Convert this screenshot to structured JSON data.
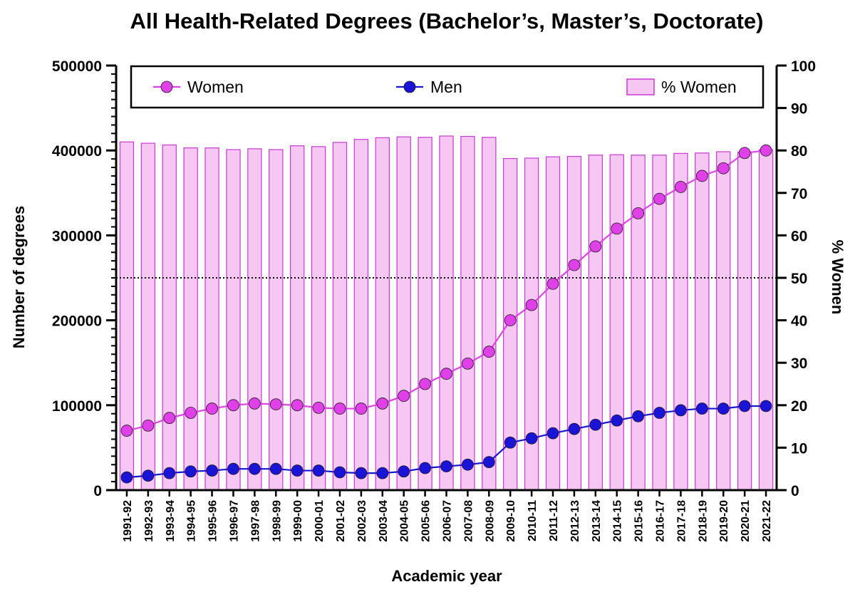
{
  "chart_data": {
    "type": "bar+line",
    "title": "All Health-Related Degrees (Bachelor’s, Master’s, Doctorate)",
    "xlabel": "Academic year",
    "ylabel_left": "Number of degrees",
    "ylabel_right": "% Women",
    "ylim_left": [
      0,
      500000
    ],
    "ylim_right": [
      0,
      100
    ],
    "yticks_left": [
      "0",
      "100000",
      "200000",
      "300000",
      "400000",
      "500000"
    ],
    "yticks_right": [
      "0",
      "10",
      "20",
      "30",
      "40",
      "50",
      "60",
      "70",
      "80",
      "90",
      "100"
    ],
    "reference_line_right": 50,
    "legend_position": "top",
    "categories": [
      "1991-92",
      "1992-93",
      "1993-94",
      "1994-95",
      "1995-96",
      "1996-97",
      "1997-98",
      "1998-99",
      "1999-00",
      "2000-01",
      "2001-02",
      "2002-03",
      "2003-04",
      "2004-05",
      "2005-06",
      "2006-07",
      "2007-08",
      "2008-09",
      "2009-10",
      "2010-11",
      "2011-12",
      "2012-13",
      "2013-14",
      "2014-15",
      "2015-16",
      "2016-17",
      "2017-18",
      "2018-19",
      "2019-20",
      "2020-21",
      "2021-22"
    ],
    "series": [
      {
        "name": "Women",
        "kind": "line",
        "axis": "left",
        "color": "#e040e8",
        "values": [
          70000,
          76000,
          85000,
          91000,
          96000,
          100000,
          102000,
          101000,
          100000,
          97000,
          96000,
          96000,
          102000,
          111000,
          125000,
          137000,
          149000,
          163000,
          200000,
          218000,
          243000,
          265000,
          287000,
          308000,
          326000,
          343000,
          357000,
          370000,
          379000,
          397000,
          400000
        ]
      },
      {
        "name": "Men",
        "kind": "line",
        "axis": "left",
        "color": "#1a14d6",
        "values": [
          15000,
          17000,
          20000,
          22000,
          23000,
          25000,
          25000,
          25000,
          23000,
          23000,
          21000,
          20000,
          20000,
          22000,
          26000,
          28000,
          30000,
          33000,
          56000,
          61000,
          67000,
          72000,
          77000,
          82000,
          87000,
          91000,
          94000,
          96000,
          96000,
          99000,
          99000
        ]
      },
      {
        "name": "% Women",
        "kind": "bar",
        "axis": "right",
        "color": "#f7c7f4",
        "edge_color": "#c838d4",
        "values": [
          82,
          81.7,
          81.3,
          80.6,
          80.6,
          80.2,
          80.4,
          80.2,
          81.1,
          80.9,
          81.9,
          82.6,
          83,
          83.2,
          83.1,
          83.4,
          83.3,
          83.1,
          78.1,
          78.2,
          78.5,
          78.6,
          78.9,
          79,
          78.9,
          78.9,
          79.3,
          79.4,
          79.7,
          79.6,
          80.2
        ]
      }
    ]
  }
}
